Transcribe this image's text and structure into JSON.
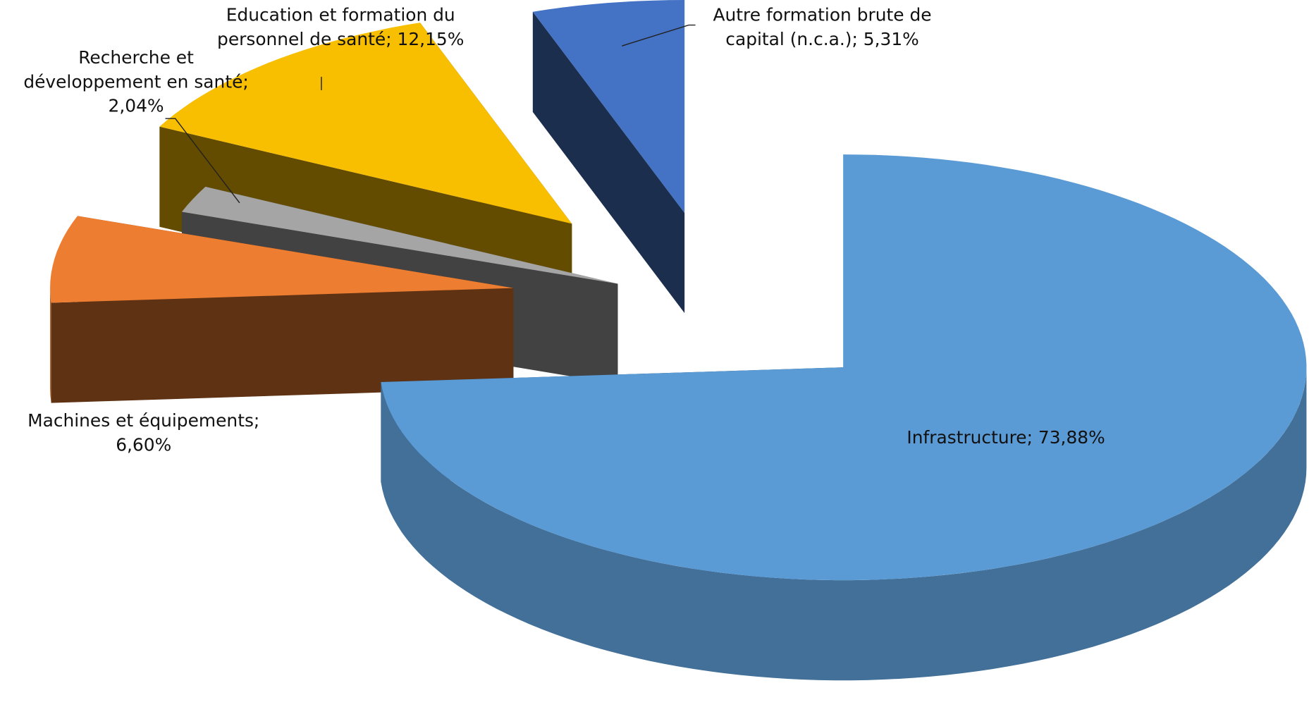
{
  "chart_data": {
    "type": "pie3d",
    "categories": [
      "Infrastructure",
      "Machines et équipements",
      "Recherche et développement en santé",
      "Education et formation du personnel de santé",
      "Autre formation brute de capital (n.c.a.)"
    ],
    "values": [
      73.88,
      6.6,
      2.04,
      12.15,
      5.31
    ],
    "value_labels": [
      "73,88%",
      "6,60%",
      "2,04%",
      "12,15%",
      "5,31%"
    ],
    "label_separator": ";",
    "colors": [
      "#5b9bd5",
      "#ed7d31",
      "#a5a5a5",
      "#f8be00",
      "#4472c4"
    ]
  }
}
